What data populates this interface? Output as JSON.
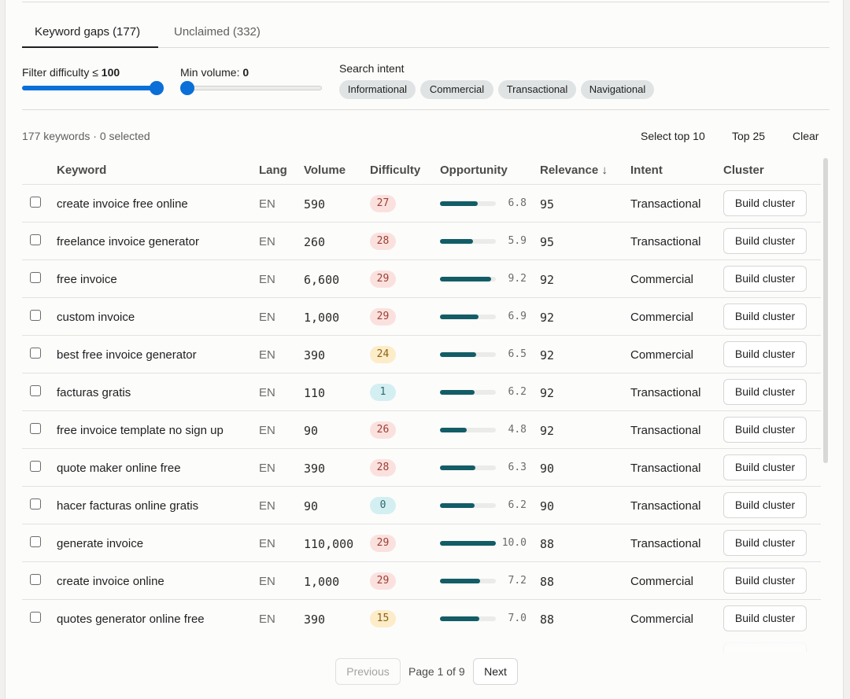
{
  "tabs": [
    {
      "label": "Keyword gaps",
      "count": "(177)"
    },
    {
      "label": "Unclaimed",
      "count": "(332)"
    }
  ],
  "filters": {
    "difficulty_label": "Filter difficulty ≤",
    "difficulty_value": "100",
    "difficulty_level": 1.0,
    "volume_label": "Min volume:",
    "volume_value": "0",
    "volume_level": 0.0,
    "intent_label": "Search intent",
    "intents": [
      "Informational",
      "Commercial",
      "Transactional",
      "Navigational"
    ]
  },
  "summary": "177 keywords · 0 selected",
  "actions": {
    "select_top10": "Select top 10",
    "top25": "Top 25",
    "clear": "Clear"
  },
  "columns": {
    "keyword": "Keyword",
    "lang": "Lang",
    "volume": "Volume",
    "difficulty": "Difficulty",
    "opportunity": "Opportunity",
    "relevance": "Relevance ↓",
    "intent": "Intent",
    "cluster": "Cluster"
  },
  "build_label": "Build cluster",
  "colors": {
    "accent": "#0b6fd8",
    "opportunity_bar": "#135d66",
    "difficulty_red_bg": "#fbe1de",
    "difficulty_yellow_bg": "#fdecc8",
    "difficulty_blue_bg": "#d4eff2"
  },
  "rows": [
    {
      "keyword": "create invoice free online",
      "lang": "EN",
      "volume": "590",
      "difficulty": "27",
      "difficulty_tone": "red",
      "opportunity": "6.8",
      "relevance": "95",
      "intent": "Transactional"
    },
    {
      "keyword": "freelance invoice generator",
      "lang": "EN",
      "volume": "260",
      "difficulty": "28",
      "difficulty_tone": "red",
      "opportunity": "5.9",
      "relevance": "95",
      "intent": "Transactional"
    },
    {
      "keyword": "free invoice",
      "lang": "EN",
      "volume": "6,600",
      "difficulty": "29",
      "difficulty_tone": "red",
      "opportunity": "9.2",
      "relevance": "92",
      "intent": "Commercial"
    },
    {
      "keyword": "custom invoice",
      "lang": "EN",
      "volume": "1,000",
      "difficulty": "29",
      "difficulty_tone": "red",
      "opportunity": "6.9",
      "relevance": "92",
      "intent": "Commercial"
    },
    {
      "keyword": "best free invoice generator",
      "lang": "EN",
      "volume": "390",
      "difficulty": "24",
      "difficulty_tone": "yellow",
      "opportunity": "6.5",
      "relevance": "92",
      "intent": "Commercial"
    },
    {
      "keyword": "facturas gratis",
      "lang": "EN",
      "volume": "110",
      "difficulty": "1",
      "difficulty_tone": "blue",
      "opportunity": "6.2",
      "relevance": "92",
      "intent": "Transactional"
    },
    {
      "keyword": "free invoice template no sign up",
      "lang": "EN",
      "volume": "90",
      "difficulty": "26",
      "difficulty_tone": "red",
      "opportunity": "4.8",
      "relevance": "92",
      "intent": "Transactional"
    },
    {
      "keyword": "quote maker online free",
      "lang": "EN",
      "volume": "390",
      "difficulty": "28",
      "difficulty_tone": "red",
      "opportunity": "6.3",
      "relevance": "90",
      "intent": "Transactional"
    },
    {
      "keyword": "hacer facturas online gratis",
      "lang": "EN",
      "volume": "90",
      "difficulty": "0",
      "difficulty_tone": "blue",
      "opportunity": "6.2",
      "relevance": "90",
      "intent": "Transactional"
    },
    {
      "keyword": "generate invoice",
      "lang": "EN",
      "volume": "110,000",
      "difficulty": "29",
      "difficulty_tone": "red",
      "opportunity": "10.0",
      "relevance": "88",
      "intent": "Transactional"
    },
    {
      "keyword": "create invoice online",
      "lang": "EN",
      "volume": "1,000",
      "difficulty": "29",
      "difficulty_tone": "red",
      "opportunity": "7.2",
      "relevance": "88",
      "intent": "Commercial"
    },
    {
      "keyword": "quotes generator online free",
      "lang": "EN",
      "volume": "390",
      "difficulty": "15",
      "difficulty_tone": "yellow",
      "opportunity": "7.0",
      "relevance": "88",
      "intent": "Commercial"
    }
  ],
  "pagination": {
    "previous": "Previous",
    "page_text": "Page 1 of 9",
    "next": "Next"
  }
}
